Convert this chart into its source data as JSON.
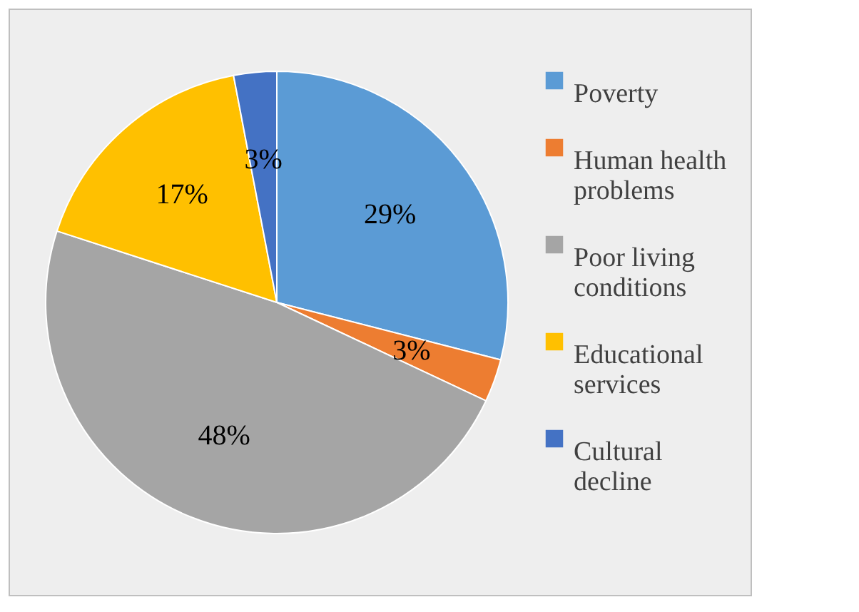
{
  "chart_data": {
    "type": "pie",
    "categories": [
      "Poverty",
      "Human health problems",
      "Poor living conditions",
      "Educational services",
      "Cultural decline"
    ],
    "values": [
      29,
      3,
      48,
      17,
      3
    ],
    "value_labels": [
      "29%",
      "3%",
      "48%",
      "17%",
      "3%"
    ],
    "colors": [
      "#5b9bd5",
      "#ed7d31",
      "#a5a5a5",
      "#ffc000",
      "#4472c4"
    ],
    "legend": "right"
  }
}
